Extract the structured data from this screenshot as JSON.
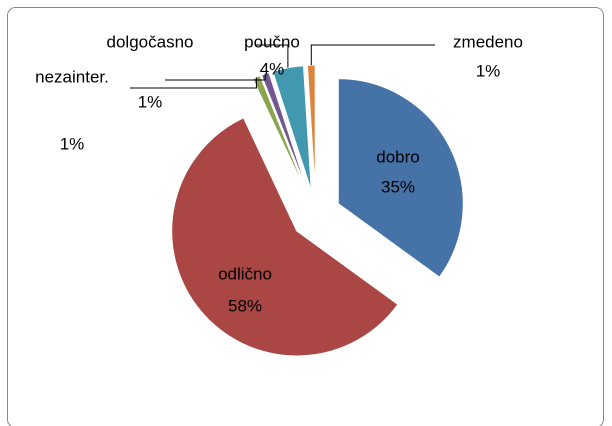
{
  "chart_data": {
    "type": "pie",
    "categories": [
      "dobro",
      "odlično",
      "nezainter.",
      "dolgočasno",
      "poučno",
      "zmedeno"
    ],
    "values": [
      35,
      58,
      1,
      1,
      4,
      1
    ],
    "value_labels": [
      "35%",
      "58%",
      "1%",
      "1%",
      "4%",
      "1%"
    ],
    "colors": [
      "#4572a7",
      "#aa4643",
      "#89a54e",
      "#71588f",
      "#4198af",
      "#db843d"
    ]
  }
}
